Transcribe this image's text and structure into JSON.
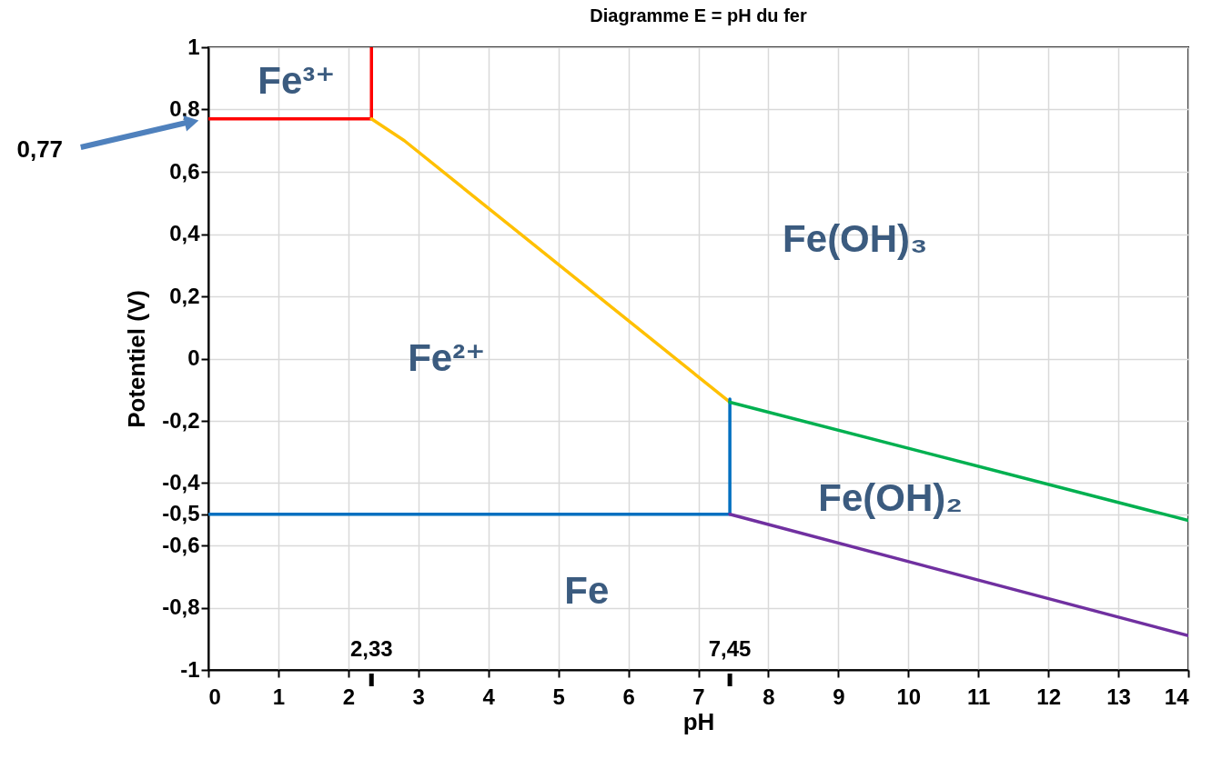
{
  "chart_data": {
    "type": "line",
    "title": "Diagramme E = pH du fer",
    "xlabel": "pH",
    "ylabel": "Potentiel (V)",
    "xlim": [
      0,
      14
    ],
    "ylim": [
      -1,
      1
    ],
    "xticks": [
      0,
      1,
      2,
      3,
      4,
      5,
      6,
      7,
      8,
      9,
      10,
      11,
      12,
      13,
      14
    ],
    "yticks": [
      -1,
      {
        "value": -0.8,
        "label": "-0,8"
      },
      {
        "value": -0.6,
        "label": "-0,6"
      },
      {
        "value": -0.5,
        "label": "-0,5"
      },
      {
        "value": -0.4,
        "label": "-0,4"
      },
      {
        "value": -0.2,
        "label": "-0,2"
      },
      0,
      {
        "value": 0.2,
        "label": "0,2"
      },
      {
        "value": 0.4,
        "label": "0,4"
      },
      {
        "value": 0.6,
        "label": "0,6"
      },
      {
        "value": 0.8,
        "label": "0,8"
      },
      1
    ],
    "grid": true,
    "line_style": "solid",
    "series": [
      {
        "color": "#ff0000",
        "x": [
          0,
          2.33,
          2.33
        ],
        "values": [
          0.77,
          0.77,
          1
        ]
      },
      {
        "color": "#ffc000",
        "x": [
          2.33,
          2.8,
          7.45
        ],
        "values": [
          0.77,
          0.7,
          -0.14
        ]
      },
      {
        "color": "#0070c0",
        "x": [
          0,
          7.45,
          7.45
        ],
        "values": [
          -0.5,
          -0.5,
          -0.13
        ]
      },
      {
        "color": "#00b050",
        "x": [
          7.45,
          14
        ],
        "values": [
          -0.14,
          -0.52
        ]
      },
      {
        "color": "#7030a0",
        "x": [
          7.45,
          14
        ],
        "values": [
          -0.5,
          -0.89
        ]
      }
    ],
    "annotations": [
      "0,77",
      {
        "text": "2,33",
        "x": 2.33
      },
      {
        "text": "7,45",
        "x": 7.45
      },
      "Fe³⁺",
      "Fe²⁺",
      "Fe(OH)₃",
      "Fe(OH)₂",
      "Fe"
    ]
  }
}
